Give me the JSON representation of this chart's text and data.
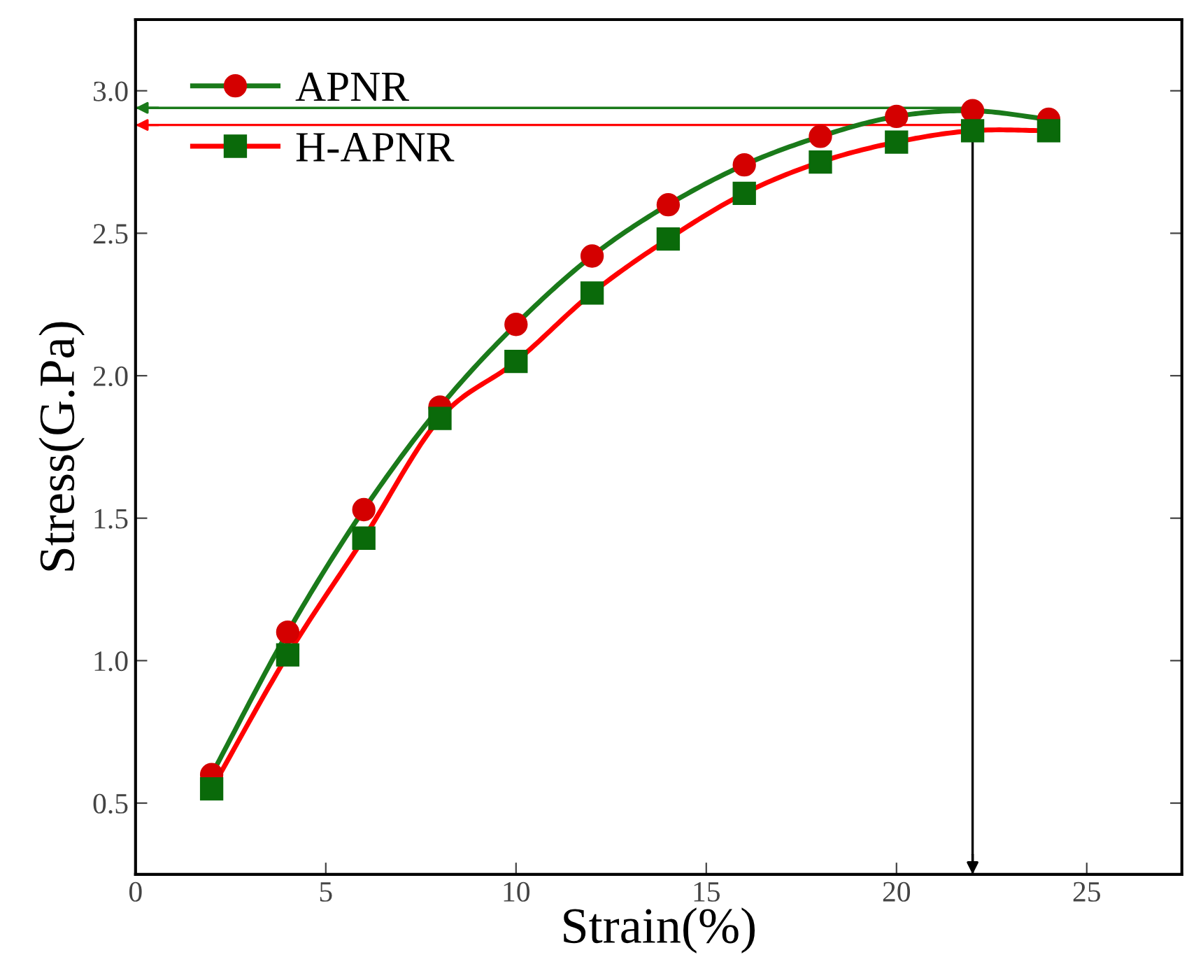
{
  "chart_data": {
    "type": "line",
    "xlabel": "Strain(%)",
    "ylabel": "Stress(G.Pa)",
    "x": [
      2,
      4,
      6,
      8,
      10,
      12,
      14,
      16,
      18,
      20,
      22,
      24
    ],
    "series": [
      {
        "name": "APNR",
        "color": "#1a7a1a",
        "colors": [
          "#d40000",
          "#d40000",
          "#d40000",
          "#d40000",
          "#d40000",
          "#d40000",
          "#d40000",
          "#d40000",
          "#d40000",
          "#d40000",
          "#d40000",
          "#d40000"
        ],
        "marker": "circle",
        "values": [
          0.6,
          1.1,
          1.53,
          1.89,
          2.18,
          2.42,
          2.6,
          2.74,
          2.84,
          2.91,
          2.93,
          2.9
        ]
      },
      {
        "name": "H-APNR",
        "color": "#ff0000",
        "colors": [
          "#0a6a0a",
          "#0a6a0a",
          "#0a6a0a",
          "#0a6a0a",
          "#0a6a0a",
          "#0a6a0a",
          "#0a6a0a",
          "#0a6a0a",
          "#0a6a0a",
          "#0a6a0a",
          "#0a6a0a",
          "#0a6a0a"
        ],
        "marker": "square",
        "values": [
          0.55,
          1.02,
          1.43,
          1.85,
          2.05,
          2.29,
          2.48,
          2.64,
          2.75,
          2.82,
          2.86,
          2.86
        ]
      }
    ],
    "xlim": [
      0,
      27.5
    ],
    "xticks": [
      0,
      5,
      10,
      15,
      20,
      25
    ],
    "ylim": [
      0.25,
      3.25
    ],
    "yticks": [
      {
        "value": 0.5,
        "label": "0.5"
      },
      {
        "value": 1.0,
        "label": "1.0"
      },
      {
        "value": 1.5,
        "label": "1.5"
      },
      {
        "value": 2.0,
        "label": "2.0"
      },
      {
        "value": 2.5,
        "label": "2.5"
      },
      {
        "value": 3.0,
        "label": "3.0"
      }
    ],
    "ref_lines": [
      {
        "axis": "y",
        "value": 2.94,
        "color": "#1a7a1a"
      },
      {
        "axis": "y",
        "value": 2.88,
        "color": "#ff0000"
      },
      {
        "axis": "x",
        "value": 22,
        "color": "#000000"
      }
    ],
    "legend": "top left",
    "grid": false
  }
}
